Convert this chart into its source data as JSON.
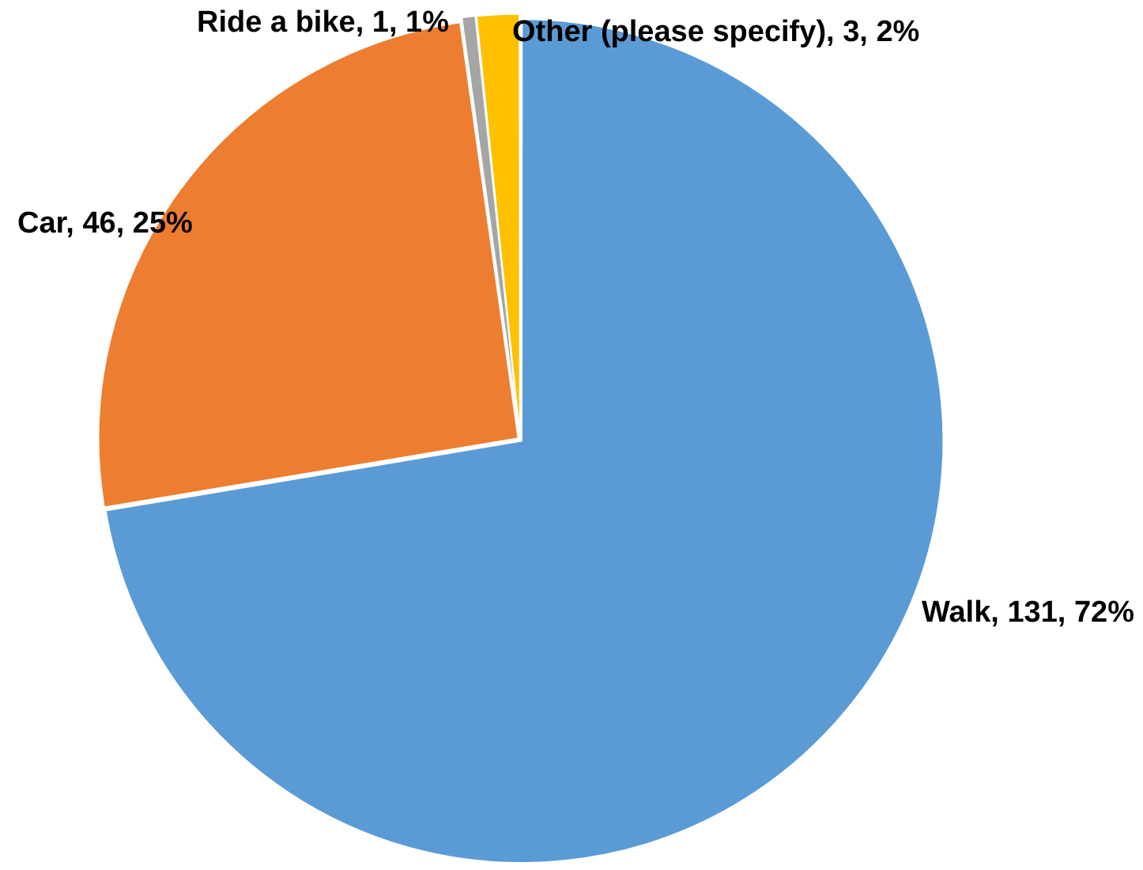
{
  "chart_data": {
    "type": "pie",
    "categories": [
      "Walk",
      "Car",
      "Ride a bike",
      "Other (please specify)"
    ],
    "values": [
      131,
      46,
      1,
      3
    ],
    "colors": [
      "#5b9bd5",
      "#ed7d31",
      "#a5a5a5",
      "#ffc000"
    ],
    "value_labels": [
      "131, 72%",
      "46, 25%",
      "1, 1%",
      "3, 2%"
    ],
    "legend": false
  }
}
